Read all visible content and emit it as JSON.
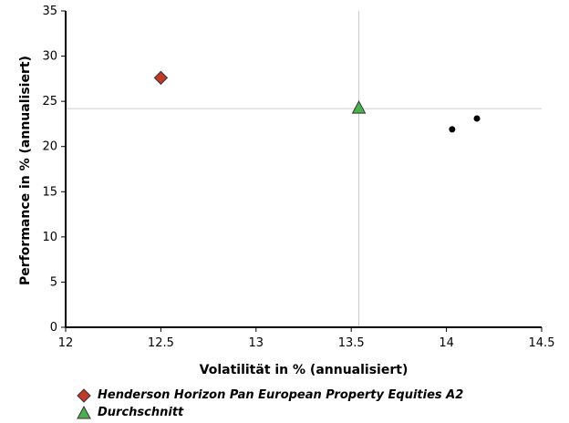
{
  "chart_data": {
    "type": "scatter",
    "xlabel": "Volatilität in % (annualisiert)",
    "ylabel": "Performance in % (annualisiert)",
    "xlim": [
      12,
      14.5
    ],
    "ylim": [
      0,
      35
    ],
    "x_ticks": [
      "12",
      "12.5",
      "13",
      "13.5",
      "14",
      "14.5"
    ],
    "y_ticks": [
      "0",
      "5",
      "10",
      "15",
      "20",
      "25",
      "30",
      "35"
    ],
    "reference_lines": {
      "x": 13.54,
      "y": 24.2
    },
    "series": [
      {
        "name": "Henderson Horizon Pan European Property Equities A2",
        "marker": "diamond",
        "color": "#c0392b",
        "points": [
          {
            "x": 12.5,
            "y": 27.6
          }
        ]
      },
      {
        "name": "Durchschnitt",
        "marker": "triangle",
        "color": "#4caf50",
        "points": [
          {
            "x": 13.54,
            "y": 24.2
          }
        ]
      },
      {
        "marker": "circle",
        "color": "#000000",
        "points": [
          {
            "x": 14.03,
            "y": 21.9
          },
          {
            "x": 14.16,
            "y": 23.1
          }
        ]
      }
    ]
  }
}
